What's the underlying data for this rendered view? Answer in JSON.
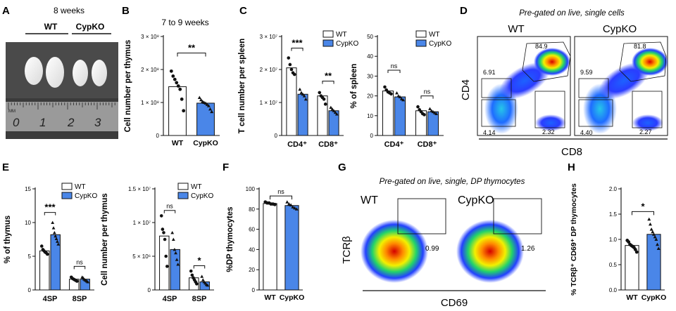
{
  "colors": {
    "wt": "#ffffff",
    "ko": "#4a86e8",
    "axis": "#111111",
    "dot": "#111111"
  },
  "panels": {
    "A": {
      "letter": "A",
      "title": "8 weeks",
      "wt_label": "WT",
      "ko_label": "CypKO",
      "ruler": [
        "0",
        "1",
        "2",
        "3"
      ],
      "ruler_unit": "MM"
    },
    "D": {
      "letter": "D",
      "title": "Pre-gated on live, single cells",
      "wt_label": "WT",
      "ko_label": "CypKO",
      "ylabel": "CD4",
      "xlabel": "CD8",
      "wt_values": [
        "84.9",
        "6.91",
        "4.14",
        "2.32"
      ],
      "ko_values": [
        "81.8",
        "9.59",
        "4.40",
        "2.27"
      ]
    },
    "G": {
      "letter": "G",
      "title": "Pre-gated on live, single, DP thymocytes",
      "wt_label": "WT",
      "ko_label": "CypKO",
      "ylabel": "TCRβ",
      "xlabel": "CD69",
      "wt_value": "0.99",
      "ko_value": "1.26"
    }
  },
  "chart_data": [
    {
      "id": "B",
      "letter": "B",
      "type": "bar",
      "title": "7 to 9 weeks",
      "ylabel": "Cell number per thymus",
      "yscale": "linear",
      "ylim": [
        0,
        300000000
      ],
      "yticks": [
        0,
        100000000,
        200000000,
        300000000
      ],
      "ytick_labels": [
        "0",
        "1 × 10⁸",
        "2 × 10⁸",
        "3 × 10⁸"
      ],
      "categories": [
        "WT",
        "CypKO"
      ],
      "values": [
        148000000,
        98000000
      ],
      "points": [
        [
          195000000,
          180000000,
          170000000,
          160000000,
          150000000,
          140000000,
          110000000,
          75000000
        ],
        [
          115000000,
          108000000,
          103000000,
          100000000,
          98000000,
          94000000,
          90000000,
          80000000,
          72000000
        ]
      ],
      "sig": [
        {
          "from": 0,
          "to": 1,
          "label": "**",
          "y": 250000000
        }
      ]
    },
    {
      "id": "C1",
      "letter": "C",
      "type": "bar",
      "title": "",
      "ylabel": "T cell number per spleen",
      "yscale": "linear",
      "ylim": [
        0,
        30000000
      ],
      "yticks": [
        0,
        10000000,
        20000000,
        30000000
      ],
      "ytick_labels": [
        "0",
        "1 × 10⁷",
        "2 × 10⁷",
        "3 × 10⁷"
      ],
      "categories": [
        "CD4⁺",
        "CD8⁺"
      ],
      "series": [
        {
          "name": "WT",
          "values": [
            20500000,
            12000000
          ]
        },
        {
          "name": "CypKO",
          "values": [
            12500000,
            7500000
          ]
        }
      ],
      "points": [
        [
          [
            23500000,
            21500000,
            20000000,
            19000000,
            18500000
          ],
          [
            13000000,
            12000000,
            11500000,
            11000000,
            9500000
          ]
        ],
        [
          [
            14000000,
            13000000,
            12500000,
            12000000,
            11000000
          ],
          [
            8500000,
            8000000,
            7500000,
            7000000,
            6500000
          ]
        ]
      ],
      "sig": [
        {
          "from": [
            0,
            0
          ],
          "to": [
            0,
            1
          ],
          "label": "***",
          "y": 26500000
        },
        {
          "from": [
            1,
            0
          ],
          "to": [
            1,
            1
          ],
          "label": "**",
          "y": 16500000
        }
      ],
      "legend": [
        "WT",
        "CypKO"
      ]
    },
    {
      "id": "C2",
      "letter": "",
      "type": "bar",
      "title": "",
      "ylabel": "% of spleen",
      "yscale": "linear",
      "ylim": [
        0,
        50
      ],
      "yticks": [
        0,
        10,
        20,
        30,
        40,
        50
      ],
      "ytick_labels": [
        "0",
        "10",
        "20",
        "30",
        "40",
        "50"
      ],
      "categories": [
        "CD4⁺",
        "CD8⁺"
      ],
      "series": [
        {
          "name": "WT",
          "values": [
            22.5,
            12.5
          ]
        },
        {
          "name": "CypKO",
          "values": [
            19.5,
            12
          ]
        }
      ],
      "points": [
        [
          [
            24.5,
            23,
            22,
            21.5,
            21
          ],
          [
            14.5,
            13,
            12,
            11,
            10.5
          ]
        ],
        [
          [
            21.5,
            20,
            19.5,
            18.5,
            18
          ],
          [
            13.5,
            12.5,
            12,
            11.5,
            11
          ]
        ]
      ],
      "sig": [
        {
          "from": [
            0,
            0
          ],
          "to": [
            0,
            1
          ],
          "label": "ns",
          "y": 33
        },
        {
          "from": [
            1,
            0
          ],
          "to": [
            1,
            1
          ],
          "label": "ns",
          "y": 20
        }
      ],
      "legend": [
        "WT",
        "CypKO"
      ]
    },
    {
      "id": "E1",
      "letter": "E",
      "type": "bar",
      "title": "",
      "ylabel": "% of thymus",
      "yscale": "linear",
      "ylim": [
        0,
        15
      ],
      "yticks": [
        0,
        5,
        10,
        15
      ],
      "ytick_labels": [
        "0",
        "5",
        "10",
        "15"
      ],
      "categories": [
        "4SP",
        "8SP"
      ],
      "series": [
        {
          "name": "WT",
          "values": [
            5.8,
            1.6
          ]
        },
        {
          "name": "CypKO",
          "values": [
            8.2,
            1.6
          ]
        }
      ],
      "points": [
        [
          [
            6.5,
            6.0,
            5.8,
            5.6,
            5.5,
            5.3
          ],
          [
            1.9,
            1.7,
            1.6,
            1.5,
            1.4,
            1.3
          ]
        ],
        [
          [
            10,
            9.2,
            8.5,
            8.0,
            7.6,
            7.2,
            6.8
          ],
          [
            1.9,
            1.8,
            1.6,
            1.5,
            1.4,
            1.3,
            1.2
          ]
        ]
      ],
      "sig": [
        {
          "from": [
            0,
            0
          ],
          "to": [
            0,
            1
          ],
          "label": "***",
          "y": 11.5
        },
        {
          "from": [
            1,
            0
          ],
          "to": [
            1,
            1
          ],
          "label": "ns",
          "y": 3.5
        }
      ],
      "legend": [
        "WT",
        "CypKO"
      ]
    },
    {
      "id": "E2",
      "letter": "",
      "type": "bar",
      "title": "",
      "ylabel": "Cell number per thymus",
      "yscale": "linear",
      "ylim": [
        0,
        15000000
      ],
      "yticks": [
        0,
        5000000,
        10000000,
        15000000
      ],
      "ytick_labels": [
        "0",
        "5 × 10⁶",
        "1 × 10⁷",
        "1.5 × 10⁷"
      ],
      "categories": [
        "4SP",
        "8SP"
      ],
      "series": [
        {
          "name": "WT",
          "values": [
            8000000,
            1800000
          ]
        },
        {
          "name": "CypKO",
          "values": [
            6000000,
            1200000
          ]
        }
      ],
      "points": [
        [
          [
            11000000,
            9000000,
            8500000,
            7500000,
            5000000,
            3500000
          ],
          [
            2800000,
            2200000,
            1800000,
            1500000,
            1200000,
            900000
          ]
        ],
        [
          [
            8500000,
            7500000,
            6000000,
            5500000,
            4500000,
            3800000
          ],
          [
            2000000,
            1500000,
            1200000,
            1000000,
            800000,
            700000
          ]
        ]
      ],
      "sig": [
        {
          "from": [
            0,
            0
          ],
          "to": [
            0,
            1
          ],
          "label": "ns",
          "y": 11800000
        },
        {
          "from": [
            1,
            0
          ],
          "to": [
            1,
            1
          ],
          "label": "*",
          "y": 3600000
        }
      ],
      "legend": [
        "WT",
        "CypKO"
      ]
    },
    {
      "id": "F",
      "letter": "F",
      "type": "bar",
      "title": "",
      "ylabel": "%DP thymocytes",
      "yscale": "linear",
      "ylim": [
        0,
        100
      ],
      "yticks": [
        0,
        20,
        40,
        60,
        80,
        100
      ],
      "ytick_labels": [
        "0",
        "20",
        "40",
        "60",
        "80",
        "100"
      ],
      "categories": [
        "WT",
        "CypKO"
      ],
      "values": [
        85.5,
        83.5
      ],
      "points": [
        [
          87,
          86,
          86,
          85,
          85,
          84.5
        ],
        [
          87,
          85,
          84,
          82,
          81,
          80
        ]
      ],
      "sig": [
        {
          "from": 0,
          "to": 1,
          "label": "ns",
          "y": 93
        }
      ]
    },
    {
      "id": "H",
      "letter": "H",
      "type": "bar",
      "title": "",
      "ylabel": "% TCRβ⁺ CD69⁺ DP thymocytes",
      "yscale": "linear",
      "ylim": [
        0,
        2.0
      ],
      "yticks": [
        0,
        0.5,
        1.0,
        1.5,
        2.0
      ],
      "ytick_labels": [
        "0.0",
        "0.5",
        "1.0",
        "1.5",
        "2.0"
      ],
      "categories": [
        "WT",
        "CypKO"
      ],
      "values": [
        0.88,
        1.1
      ],
      "points": [
        [
          0.98,
          0.95,
          0.9,
          0.88,
          0.86,
          0.84,
          0.8,
          0.75
        ],
        [
          1.4,
          1.3,
          1.2,
          1.15,
          1.1,
          1.05,
          1.0,
          0.9,
          0.82
        ]
      ],
      "sig": [
        {
          "from": 0,
          "to": 1,
          "label": "*",
          "y": 1.55
        }
      ]
    }
  ]
}
